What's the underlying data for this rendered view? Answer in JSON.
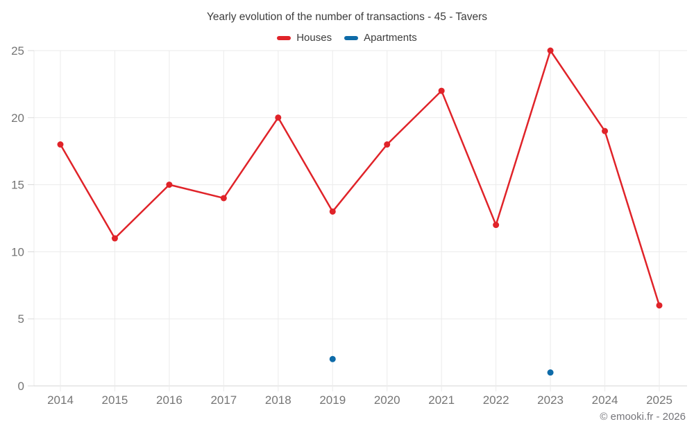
{
  "chart_data": {
    "type": "line",
    "title": "Yearly evolution of the number of transactions - 45 - Tavers",
    "categories": [
      "2014",
      "2015",
      "2016",
      "2017",
      "2018",
      "2019",
      "2020",
      "2021",
      "2022",
      "2023",
      "2024",
      "2025"
    ],
    "series": [
      {
        "name": "Houses",
        "type": "line",
        "color": "#e02329",
        "values": [
          18,
          11,
          15,
          14,
          20,
          13,
          18,
          22,
          12,
          25,
          19,
          6
        ]
      },
      {
        "name": "Apartments",
        "type": "scatter",
        "color": "#0e6ba8",
        "values": [
          null,
          null,
          null,
          null,
          null,
          2,
          null,
          null,
          null,
          1,
          null,
          null
        ]
      }
    ],
    "xlabel": "",
    "ylabel": "",
    "ylim": [
      0,
      25
    ],
    "yticks": [
      0,
      5,
      10,
      15,
      20,
      25
    ],
    "grid": true,
    "legend_position": "top"
  },
  "footer": {
    "copyright": "© emooki.fr - 2026"
  },
  "colors": {
    "title_text": "#3c3c3c",
    "axis_text": "#757575",
    "grid": "#ebebeb",
    "baseline": "#d6d6d6",
    "tick": "#d9d9d9"
  }
}
